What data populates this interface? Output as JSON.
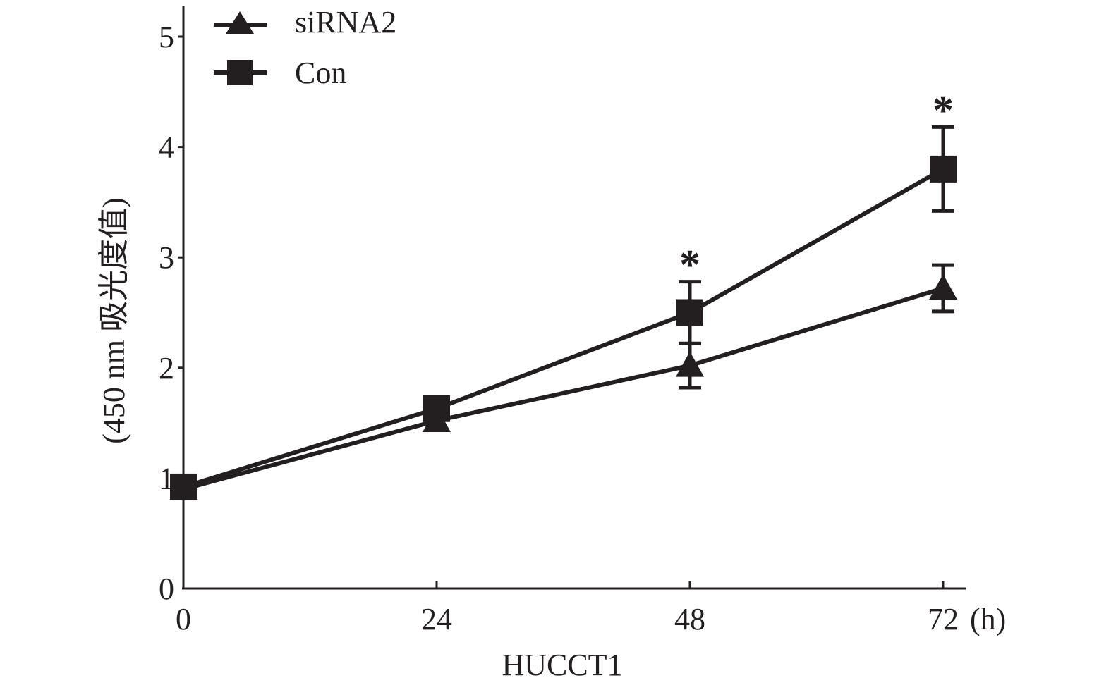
{
  "chart_data": {
    "type": "line",
    "title": "",
    "xlabel": "HUCCT1",
    "x_unit_label": "(h)",
    "ylabel": "(450 nm 吸光度值)",
    "x": [
      0,
      24,
      48,
      72
    ],
    "x_tick_labels": [
      "0",
      "24",
      "48",
      "72"
    ],
    "y_tick_labels": [
      "0",
      "1",
      "2",
      "3",
      "4",
      "5"
    ],
    "xlim": [
      0,
      74
    ],
    "ylim": [
      0,
      5.2
    ],
    "grid": false,
    "legend": {
      "placement": "top-left",
      "entries": [
        "siRNA2",
        "Con"
      ]
    },
    "series": [
      {
        "name": "siRNA2",
        "marker": "triangle",
        "values": [
          0.9,
          1.52,
          2.02,
          2.72
        ],
        "errors": [
          0.03,
          0.05,
          0.2,
          0.21
        ]
      },
      {
        "name": "Con",
        "marker": "square",
        "values": [
          0.92,
          1.63,
          2.5,
          3.8
        ],
        "errors": [
          0.03,
          0.06,
          0.28,
          0.38
        ]
      }
    ],
    "annotations": [
      {
        "x": 48,
        "text": "*"
      },
      {
        "x": 72,
        "text": "*"
      }
    ],
    "color": "#231f20"
  }
}
